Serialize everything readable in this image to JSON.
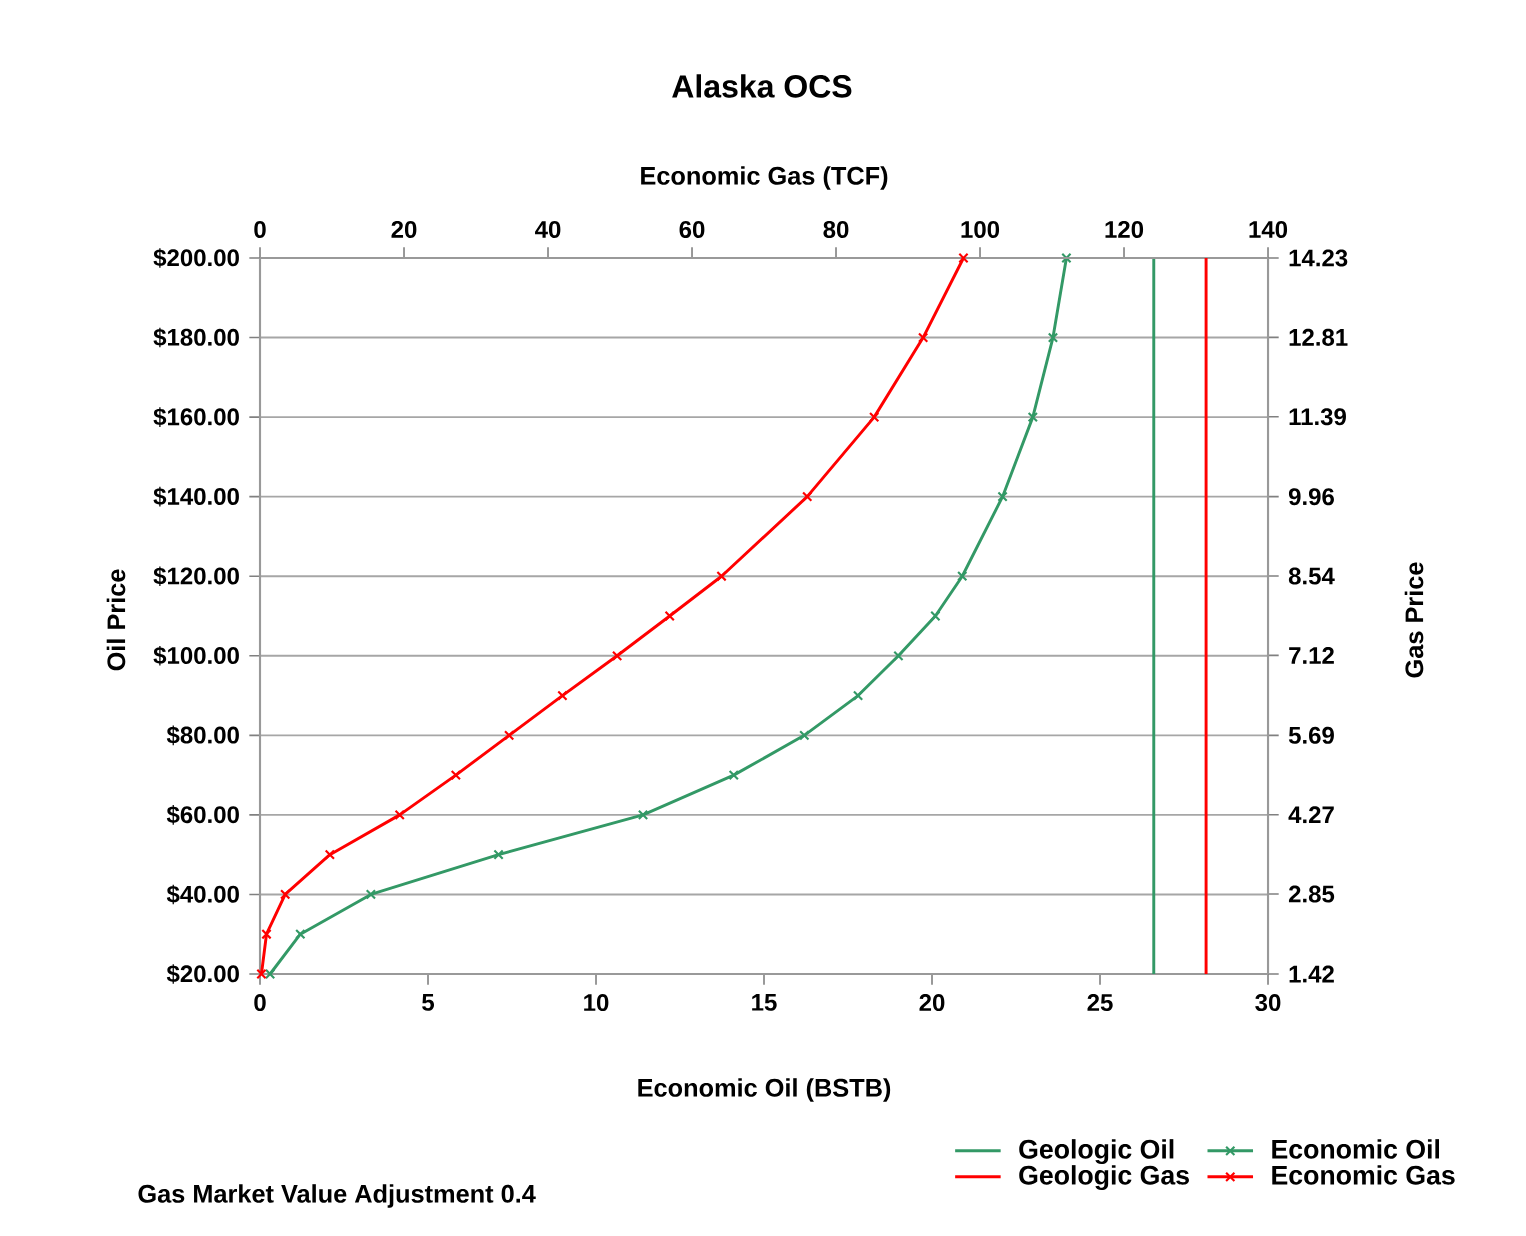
{
  "chart_data": {
    "type": "line",
    "title": "Alaska OCS",
    "xlabel": "Economic Oil (BSTB)",
    "x2label": "Economic Gas (TCF)",
    "ylabel": "Oil Price",
    "y2label": "Gas Price",
    "annotations": [
      "Gas Market Value Adjustment 0.4"
    ],
    "xlim": [
      0,
      30
    ],
    "xticks": [
      0,
      5,
      10,
      15,
      20,
      25,
      30
    ],
    "x2lim": [
      0,
      140
    ],
    "x2ticks": [
      0,
      20,
      40,
      60,
      80,
      100,
      120,
      140
    ],
    "ylim": [
      20,
      200
    ],
    "yticks": [
      {
        "value": 20,
        "label": "$20.00"
      },
      {
        "value": 40,
        "label": "$40.00"
      },
      {
        "value": 60,
        "label": "$60.00"
      },
      {
        "value": 80,
        "label": "$80.00"
      },
      {
        "value": 100,
        "label": "$100.00"
      },
      {
        "value": 120,
        "label": "$120.00"
      },
      {
        "value": 140,
        "label": "$140.00"
      },
      {
        "value": 160,
        "label": "$160.00"
      },
      {
        "value": 180,
        "label": "$180.00"
      },
      {
        "value": 200,
        "label": "$200.00"
      }
    ],
    "y2lim": [
      1.42,
      14.23
    ],
    "y2ticks": [
      1.42,
      2.85,
      4.27,
      5.69,
      7.12,
      8.54,
      9.96,
      11.39,
      12.81,
      14.23
    ],
    "grid": "y",
    "legend": "bottom right",
    "series": [
      {
        "name": "Geologic Oil",
        "color": "#339966",
        "marker": "none",
        "x": [
          26.6,
          26.6
        ],
        "values": [
          20,
          200
        ]
      },
      {
        "name": "Economic Oil",
        "color": "#339966",
        "marker": "cross",
        "x": [
          0.3,
          1.2,
          3.3,
          7.1,
          11.4,
          14.1,
          16.2,
          17.8,
          19.0,
          20.1,
          20.9,
          22.1,
          23.0,
          23.6,
          24.0
        ],
        "values": [
          20,
          30,
          40,
          50,
          60,
          70,
          80,
          90,
          100,
          110,
          120,
          140,
          160,
          180,
          200
        ]
      },
      {
        "name": "Geologic Gas",
        "color": "#ff0000",
        "marker": "none",
        "axis": "x2",
        "x": [
          131.4,
          131.4
        ],
        "values": [
          20,
          200
        ]
      },
      {
        "name": "Economic Gas",
        "color": "#ff0000",
        "marker": "cross",
        "axis": "x2",
        "x": [
          0.2,
          0.9,
          3.5,
          9.7,
          19.4,
          27.2,
          34.6,
          42.0,
          49.6,
          56.9,
          64.1,
          76.0,
          85.3,
          92.1,
          97.7
        ],
        "values": [
          20,
          30,
          40,
          50,
          60,
          70,
          80,
          90,
          100,
          110,
          120,
          140,
          160,
          180,
          200
        ]
      }
    ]
  }
}
